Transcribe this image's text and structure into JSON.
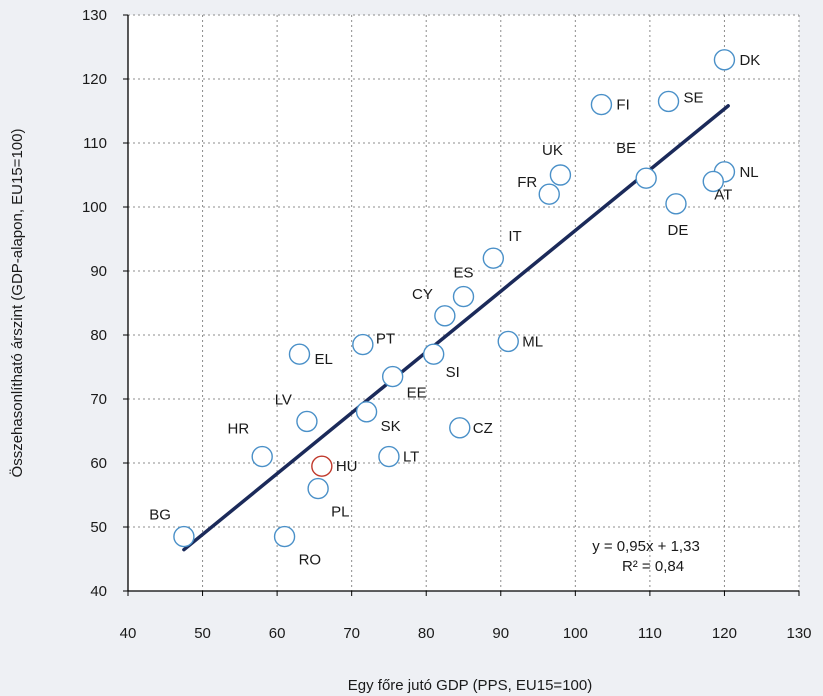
{
  "chart_data": {
    "type": "scatter",
    "title": "",
    "xlabel": "Egy főre jutó GDP (PPS, EU15=100)",
    "ylabel": "Összehasonlítható árszint (GDP-alapon, EU15=100)",
    "xlim": [
      40,
      130
    ],
    "ylim": [
      40,
      130
    ],
    "x_ticks": [
      40,
      50,
      60,
      70,
      80,
      90,
      100,
      110,
      120,
      130
    ],
    "y_ticks": [
      40,
      50,
      60,
      70,
      80,
      90,
      100,
      110,
      120,
      130
    ],
    "grid": true,
    "colors": {
      "background": "#eef0f4",
      "plot_bg": "#ffffff",
      "marker_stroke": "#4a90c8",
      "highlight": "#c0392b",
      "trendline": "#1b2a5a",
      "grid": "#8c8c8c"
    },
    "points": [
      {
        "label": "BG",
        "x": 47.5,
        "y": 48.5,
        "highlight": false
      },
      {
        "label": "RO",
        "x": 61,
        "y": 48.5,
        "highlight": false
      },
      {
        "label": "PL",
        "x": 65.5,
        "y": 56,
        "highlight": false
      },
      {
        "label": "HU",
        "x": 66,
        "y": 59.5,
        "highlight": true
      },
      {
        "label": "HR",
        "x": 58,
        "y": 61,
        "highlight": false
      },
      {
        "label": "LT",
        "x": 75,
        "y": 61,
        "highlight": false
      },
      {
        "label": "LV",
        "x": 64,
        "y": 66.5,
        "highlight": false
      },
      {
        "label": "SK",
        "x": 72,
        "y": 68,
        "highlight": false
      },
      {
        "label": "CZ",
        "x": 84.5,
        "y": 65.5,
        "highlight": false
      },
      {
        "label": "EE",
        "x": 75.5,
        "y": 73.5,
        "highlight": false
      },
      {
        "label": "EL",
        "x": 63,
        "y": 77,
        "highlight": false
      },
      {
        "label": "PT",
        "x": 71.5,
        "y": 78.5,
        "highlight": false
      },
      {
        "label": "SI",
        "x": 81,
        "y": 77,
        "highlight": false
      },
      {
        "label": "ML",
        "x": 91,
        "y": 79,
        "highlight": false
      },
      {
        "label": "CY",
        "x": 82.5,
        "y": 83,
        "highlight": false
      },
      {
        "label": "ES",
        "x": 85,
        "y": 86,
        "highlight": false
      },
      {
        "label": "IT",
        "x": 89,
        "y": 92,
        "highlight": false
      },
      {
        "label": "FR",
        "x": 96.5,
        "y": 102,
        "highlight": false
      },
      {
        "label": "UK",
        "x": 98,
        "y": 105,
        "highlight": false
      },
      {
        "label": "BE",
        "x": 109.5,
        "y": 104.5,
        "highlight": false
      },
      {
        "label": "FI",
        "x": 103.5,
        "y": 116,
        "highlight": false
      },
      {
        "label": "SE",
        "x": 112.5,
        "y": 116.5,
        "highlight": false
      },
      {
        "label": "DK",
        "x": 120,
        "y": 123,
        "highlight": false
      },
      {
        "label": "NL",
        "x": 120,
        "y": 105.5,
        "highlight": false
      },
      {
        "label": "AT",
        "x": 118.5,
        "y": 104,
        "highlight": false
      },
      {
        "label": "DE",
        "x": 113.5,
        "y": 100.5,
        "highlight": false
      }
    ],
    "trendline": {
      "x_start": 47.5,
      "x_end": 120.5,
      "slope": 0.95,
      "intercept": 1.33
    },
    "annotation": {
      "equation": "y = 0,95x + 1,33",
      "r_squared": "R² = 0,84"
    }
  }
}
